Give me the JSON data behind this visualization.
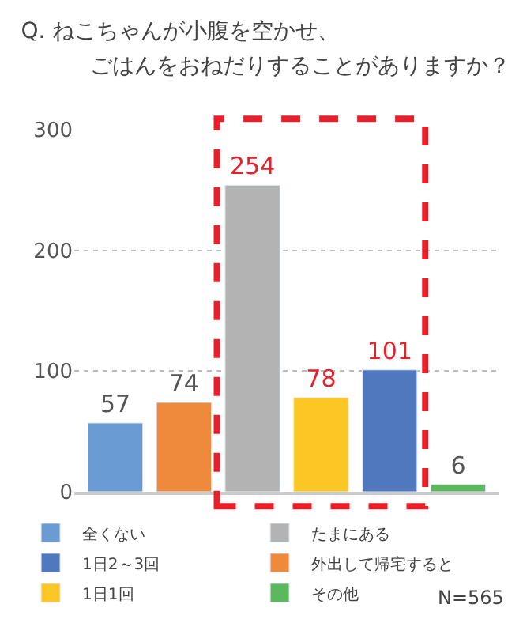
{
  "chart_data": {
    "type": "bar",
    "title": "Q. ねこちゃんが小腹を空かせ、",
    "subtitle": "ごはんをおねだりすることがありますか？",
    "categories": [
      null,
      null,
      null,
      null,
      null,
      null
    ],
    "series": [
      {
        "name": "全くない",
        "color": "#6a9bd3",
        "values": [
          57,
          null,
          null,
          null,
          null,
          null
        ]
      },
      {
        "name": "たまにある",
        "color": "#b3b3b3",
        "values": [
          null,
          null,
          254,
          null,
          null,
          null
        ]
      },
      {
        "name": "1日2～3回",
        "color": "#4f78bf",
        "values": [
          null,
          null,
          null,
          null,
          101,
          null
        ]
      },
      {
        "name": "外出して帰宅すると",
        "color": "#ef8a3c",
        "values": [
          null,
          74,
          null,
          null,
          null,
          null
        ]
      },
      {
        "name": "1日1回",
        "color": "#fcc624",
        "values": [
          null,
          null,
          null,
          78,
          null,
          null
        ]
      },
      {
        "name": "その他",
        "color": "#5cb85c",
        "values": [
          null,
          null,
          null,
          null,
          null,
          6
        ]
      }
    ],
    "ylim": [
      0,
      300
    ],
    "yticks": [
      0,
      100,
      200,
      300
    ],
    "grid": "y",
    "legend": "bottom",
    "tick_labels": "y",
    "data_labels": true,
    "annotations": [
      "N=565"
    ]
  }
}
